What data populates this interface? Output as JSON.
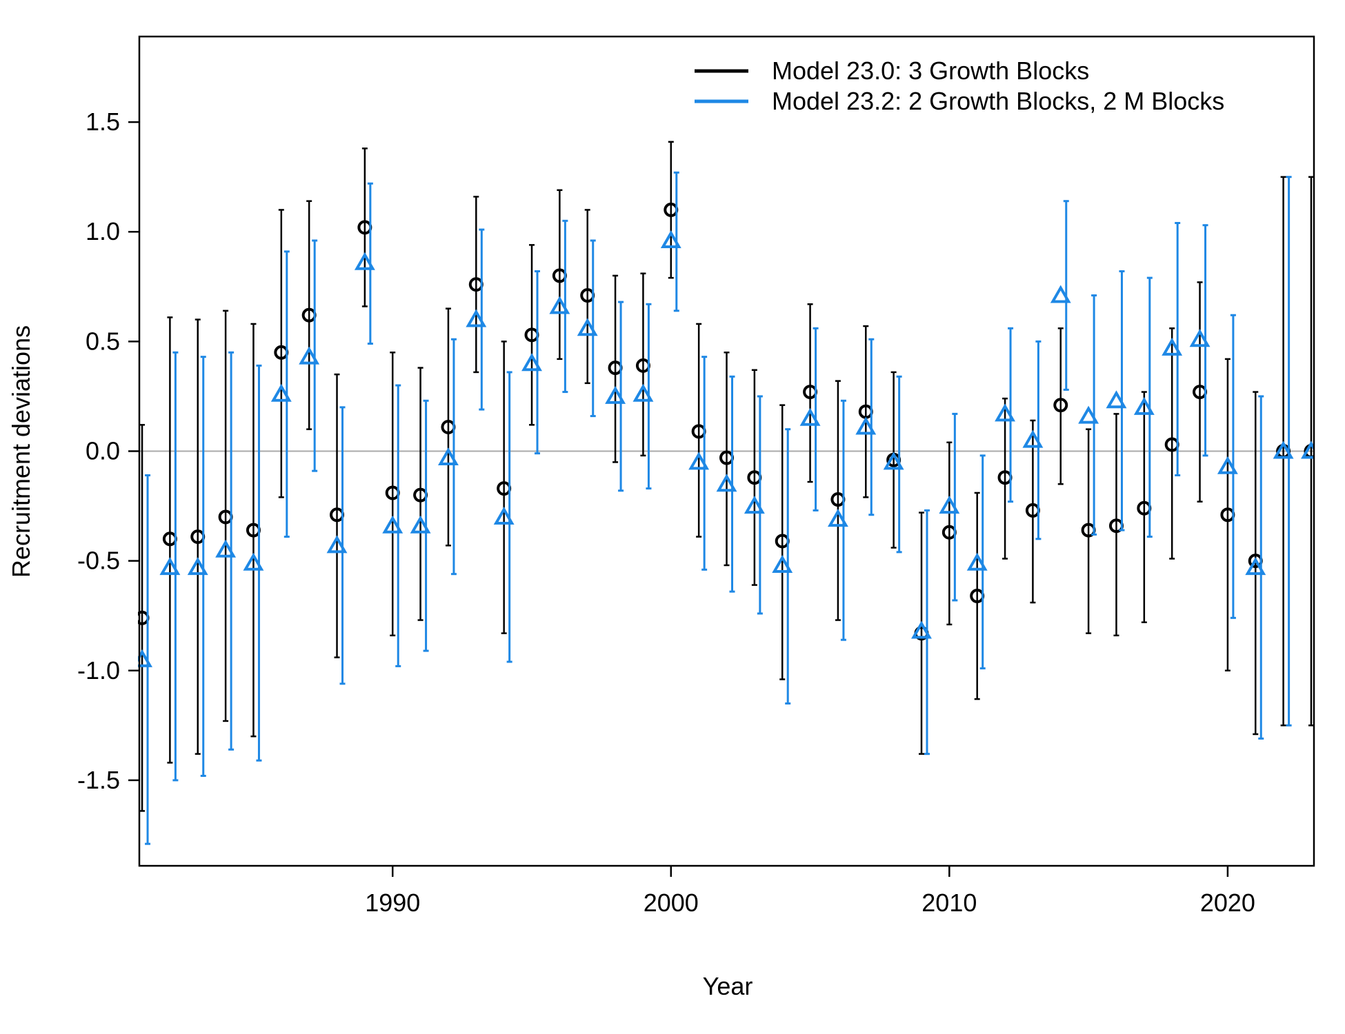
{
  "chart_data": {
    "type": "scatter",
    "title": "",
    "xlabel": "Year",
    "ylabel": "Recruitment deviations",
    "xlim": [
      1980.9,
      2023.1
    ],
    "ylim": [
      -1.89,
      1.89
    ],
    "x_ticks": [
      1990,
      2000,
      2010,
      2020
    ],
    "y_ticks": [
      -1.5,
      -1.0,
      -0.5,
      0.0,
      0.5,
      1.0,
      1.5
    ],
    "y_tick_labels": [
      "-1.5",
      "-1.0",
      "-0.5",
      "0.0",
      "0.5",
      "1.0",
      "1.5"
    ],
    "reference_line": {
      "y": 0.0,
      "color": "#aaaaaa"
    },
    "grid": false,
    "legend_position": "top-right",
    "series": [
      {
        "name": "Model 23.0: 3 Growth Blocks",
        "color": "#000000",
        "marker": "circle",
        "x": [
          1981,
          1982,
          1983,
          1984,
          1985,
          1986,
          1987,
          1988,
          1989,
          1990,
          1991,
          1992,
          1993,
          1994,
          1995,
          1996,
          1997,
          1998,
          1999,
          2000,
          2001,
          2002,
          2003,
          2004,
          2005,
          2006,
          2007,
          2008,
          2009,
          2010,
          2011,
          2012,
          2013,
          2014,
          2015,
          2016,
          2017,
          2018,
          2019,
          2020,
          2021,
          2022,
          2023
        ],
        "y": [
          -0.76,
          -0.4,
          -0.39,
          -0.3,
          -0.36,
          0.45,
          0.62,
          -0.29,
          1.02,
          -0.19,
          -0.2,
          0.11,
          0.76,
          -0.17,
          0.53,
          0.8,
          0.71,
          0.38,
          0.39,
          1.1,
          0.09,
          -0.03,
          -0.12,
          -0.41,
          0.27,
          -0.22,
          0.18,
          -0.04,
          -0.83,
          -0.37,
          -0.66,
          -0.12,
          -0.27,
          0.21,
          -0.36,
          -0.34,
          -0.26,
          0.03,
          0.27,
          -0.29,
          -0.5,
          0.0,
          0.0
        ],
        "lower": [
          -1.64,
          -1.42,
          -1.38,
          -1.23,
          -1.3,
          -0.21,
          0.1,
          -0.94,
          0.66,
          -0.84,
          -0.77,
          -0.43,
          0.36,
          -0.83,
          0.12,
          0.42,
          0.31,
          -0.05,
          -0.02,
          0.79,
          -0.39,
          -0.52,
          -0.61,
          -1.04,
          -0.14,
          -0.77,
          -0.21,
          -0.44,
          -1.38,
          -0.79,
          -1.13,
          -0.49,
          -0.69,
          -0.15,
          -0.83,
          -0.84,
          -0.78,
          -0.49,
          -0.23,
          -1.0,
          -1.29,
          -1.25,
          -1.25
        ],
        "upper": [
          0.12,
          0.61,
          0.6,
          0.64,
          0.58,
          1.1,
          1.14,
          0.35,
          1.38,
          0.45,
          0.38,
          0.65,
          1.16,
          0.5,
          0.94,
          1.19,
          1.1,
          0.8,
          0.81,
          1.41,
          0.58,
          0.45,
          0.37,
          0.21,
          0.67,
          0.32,
          0.57,
          0.36,
          -0.28,
          0.04,
          -0.19,
          0.24,
          0.14,
          0.56,
          0.1,
          0.17,
          0.27,
          0.56,
          0.77,
          0.42,
          0.27,
          1.25,
          1.25
        ]
      },
      {
        "name": "Model 23.2: 2 Growth Blocks, 2 M Blocks",
        "color": "#1e88e5",
        "marker": "triangle",
        "x": [
          1981,
          1982,
          1983,
          1984,
          1985,
          1986,
          1987,
          1988,
          1989,
          1990,
          1991,
          1992,
          1993,
          1994,
          1995,
          1996,
          1997,
          1998,
          1999,
          2000,
          2001,
          2002,
          2003,
          2004,
          2005,
          2006,
          2007,
          2008,
          2009,
          2010,
          2011,
          2012,
          2013,
          2014,
          2015,
          2016,
          2017,
          2018,
          2019,
          2020,
          2021,
          2022,
          2023
        ],
        "y": [
          -0.95,
          -0.53,
          -0.53,
          -0.45,
          -0.51,
          0.26,
          0.43,
          -0.43,
          0.86,
          -0.34,
          -0.34,
          -0.03,
          0.6,
          -0.3,
          0.4,
          0.66,
          0.56,
          0.25,
          0.26,
          0.96,
          -0.05,
          -0.15,
          -0.25,
          -0.52,
          0.15,
          -0.31,
          0.11,
          -0.05,
          -0.82,
          -0.25,
          -0.51,
          0.17,
          0.05,
          0.71,
          0.16,
          0.23,
          0.2,
          0.47,
          0.51,
          -0.07,
          -0.53,
          0.0,
          0.0
        ],
        "lower": [
          -1.79,
          -1.5,
          -1.48,
          -1.36,
          -1.41,
          -0.39,
          -0.09,
          -1.06,
          0.49,
          -0.98,
          -0.91,
          -0.56,
          0.19,
          -0.96,
          -0.01,
          0.27,
          0.16,
          -0.18,
          -0.17,
          0.64,
          -0.54,
          -0.64,
          -0.74,
          -1.15,
          -0.27,
          -0.86,
          -0.29,
          -0.46,
          -1.38,
          -0.68,
          -0.99,
          -0.23,
          -0.4,
          0.28,
          -0.38,
          -0.36,
          -0.39,
          -0.11,
          -0.02,
          -0.76,
          -1.31,
          -1.25,
          -1.25
        ],
        "upper": [
          -0.11,
          0.45,
          0.43,
          0.45,
          0.39,
          0.91,
          0.96,
          0.2,
          1.22,
          0.3,
          0.23,
          0.51,
          1.01,
          0.36,
          0.82,
          1.05,
          0.96,
          0.68,
          0.67,
          1.27,
          0.43,
          0.34,
          0.25,
          0.1,
          0.56,
          0.23,
          0.51,
          0.34,
          -0.27,
          0.17,
          -0.02,
          0.56,
          0.5,
          1.14,
          0.71,
          0.82,
          0.79,
          1.04,
          1.03,
          0.62,
          0.25,
          1.25,
          1.25
        ]
      }
    ]
  }
}
